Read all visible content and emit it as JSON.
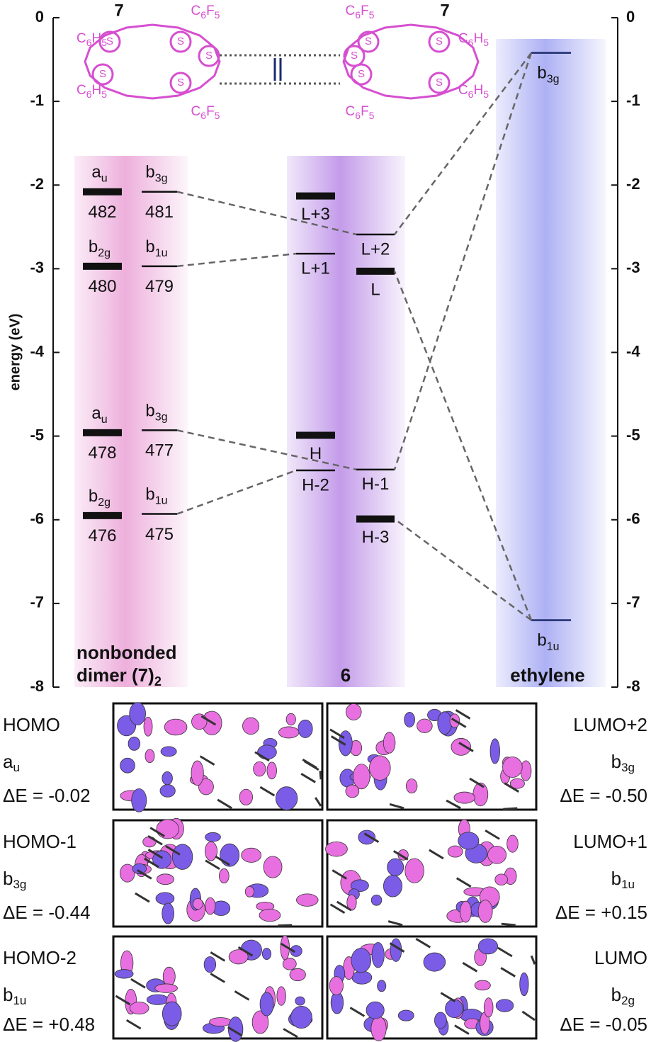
{
  "chart_data": {
    "type": "energy-levels",
    "ylabel": "energy (eV)",
    "ylim": [
      -8,
      0
    ],
    "yticks": [
      0,
      -1,
      -2,
      -3,
      -4,
      -5,
      -6,
      -7,
      -8
    ],
    "molecule": {
      "compound": "7",
      "ring_atom": "S",
      "sub_a": "C6F5",
      "sub_b": "C6H5"
    },
    "groups": [
      {
        "title": "nonbonded",
        "title2": "dimer (7)",
        "title2_sub": "2",
        "color": "#eaa2d6",
        "levels": [
          {
            "label": "a",
            "sub": "u",
            "number": "482",
            "energy": -2.08,
            "thick": true
          },
          {
            "label": "b",
            "sub": "3g",
            "number": "481",
            "energy": -2.08,
            "thick": false
          },
          {
            "label": "b",
            "sub": "2g",
            "number": "480",
            "energy": -2.97,
            "thick": true
          },
          {
            "label": "b",
            "sub": "1u",
            "number": "479",
            "energy": -2.97,
            "thick": false
          },
          {
            "label": "a",
            "sub": "u",
            "number": "478",
            "energy": -4.96,
            "thick": true
          },
          {
            "label": "b",
            "sub": "3g",
            "number": "477",
            "energy": -4.93,
            "thick": false
          },
          {
            "label": "b",
            "sub": "2g",
            "number": "476",
            "energy": -5.95,
            "thick": true
          },
          {
            "label": "b",
            "sub": "1u",
            "number": "475",
            "energy": -5.93,
            "thick": false
          }
        ]
      },
      {
        "title2": "6",
        "color": "#b98ae6",
        "levels": [
          {
            "label": "L+3",
            "energy": -2.13,
            "thick": true
          },
          {
            "label": "L+1",
            "energy": -2.82,
            "thick": false
          },
          {
            "label": "L+2",
            "energy": -2.59,
            "thick": false
          },
          {
            "label": "L",
            "energy": -3.03,
            "thick": true
          },
          {
            "label": "H",
            "energy": -4.99,
            "thick": true
          },
          {
            "label": "H-2",
            "energy": -5.41,
            "thick": false
          },
          {
            "label": "H-1",
            "energy": -5.4,
            "thick": false
          },
          {
            "label": "H-3",
            "energy": -5.99,
            "thick": true
          }
        ]
      },
      {
        "title2": "ethylene",
        "color": "#9fa3f2",
        "levels": [
          {
            "label": "b",
            "sub": "3g",
            "energy": -0.42,
            "thick": false
          },
          {
            "label": "b",
            "sub": "1u",
            "energy": -7.2,
            "thick": false
          }
        ]
      }
    ],
    "orbitals": [
      {
        "left": {
          "name": "HOMO",
          "sym": "a",
          "sub": "u",
          "dE": "ΔE = -0.02"
        },
        "right": {
          "name": "LUMO+2",
          "sym": "b",
          "sub": "3g",
          "dE": "ΔE = -0.50"
        }
      },
      {
        "left": {
          "name": "HOMO-1",
          "sym": "b",
          "sub": "3g",
          "dE": "ΔE = -0.44"
        },
        "right": {
          "name": "LUMO+1",
          "sym": "b",
          "sub": "1u",
          "dE": "ΔE = +0.15"
        }
      },
      {
        "left": {
          "name": "HOMO-2",
          "sym": "b",
          "sub": "1u",
          "dE": "ΔE = +0.48"
        },
        "right": {
          "name": "LUMO",
          "sym": "b",
          "sub": "2g",
          "dE": "ΔE = -0.05"
        }
      }
    ]
  }
}
